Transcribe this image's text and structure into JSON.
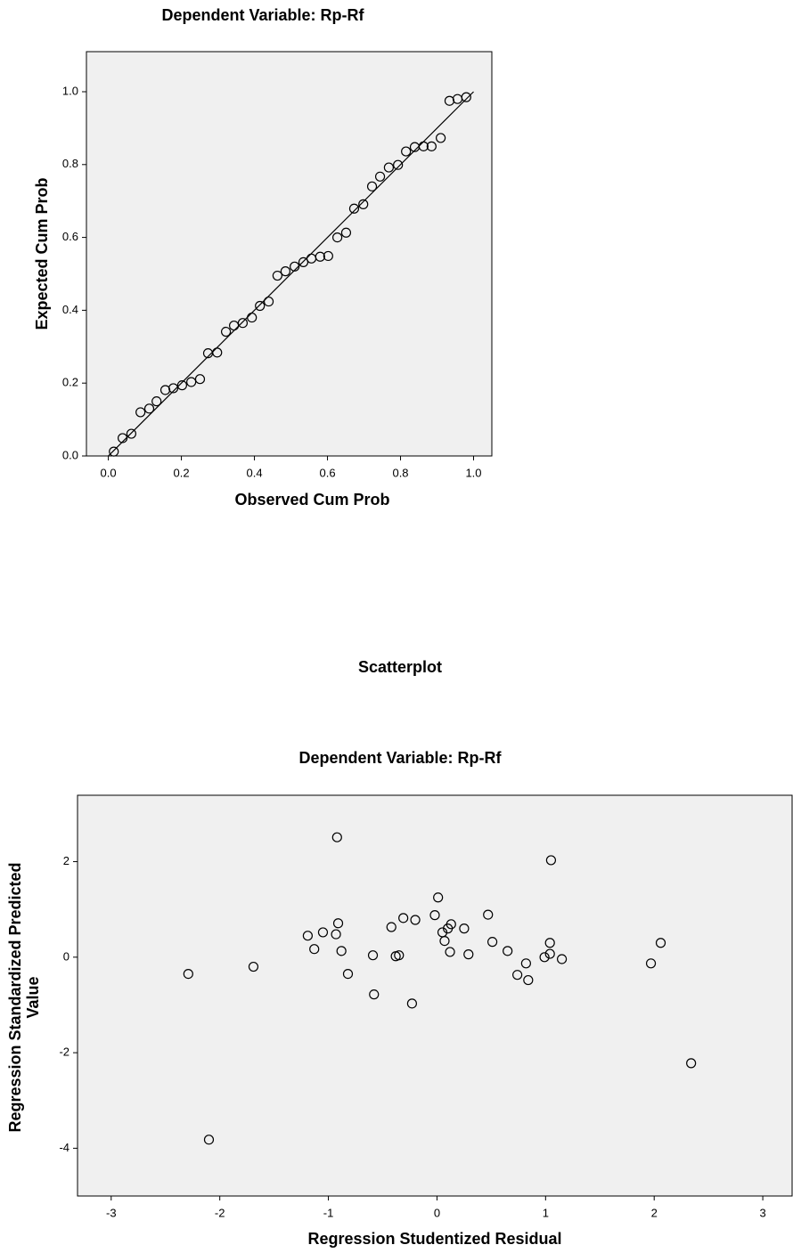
{
  "chart_data": [
    {
      "type": "scatter",
      "subtitle": "Dependent Variable: Rp-Rf",
      "xlabel": "Observed Cum Prob",
      "ylabel": [
        "Expected Cum Prob"
      ],
      "diagonal": true,
      "color": "#000000",
      "x": [
        0.015,
        0.039,
        0.063,
        0.088,
        0.112,
        0.132,
        0.156,
        0.178,
        0.202,
        0.227,
        0.251,
        0.273,
        0.298,
        0.322,
        0.344,
        0.368,
        0.393,
        0.415,
        0.439,
        0.463,
        0.485,
        0.51,
        0.534,
        0.556,
        0.58,
        0.602,
        0.627,
        0.651,
        0.673,
        0.698,
        0.722,
        0.744,
        0.768,
        0.793,
        0.815,
        0.839,
        0.863,
        0.885,
        0.91,
        0.934,
        0.956,
        0.98
      ],
      "values": [
        0.012,
        0.049,
        0.061,
        0.12,
        0.13,
        0.15,
        0.181,
        0.186,
        0.194,
        0.203,
        0.211,
        0.282,
        0.284,
        0.341,
        0.358,
        0.365,
        0.38,
        0.412,
        0.424,
        0.495,
        0.507,
        0.52,
        0.532,
        0.542,
        0.547,
        0.549,
        0.6,
        0.613,
        0.679,
        0.691,
        0.74,
        0.767,
        0.792,
        0.799,
        0.836,
        0.848,
        0.85,
        0.85,
        0.873,
        0.975,
        0.98,
        0.985
      ],
      "xlim": [
        -0.06,
        1.05
      ],
      "ylim": [
        0,
        1.11
      ],
      "xticks": [
        {
          "value": 0,
          "label": "0.0"
        },
        {
          "value": 0.2,
          "label": "0.2"
        },
        {
          "value": 0.4,
          "label": "0.4"
        },
        {
          "value": 0.6,
          "label": "0.6"
        },
        {
          "value": 0.8,
          "label": "0.8"
        },
        {
          "value": 1,
          "label": "1.0"
        }
      ],
      "yticks": [
        {
          "value": 0,
          "label": "0.0"
        },
        {
          "value": 0.2,
          "label": "0.2"
        },
        {
          "value": 0.4,
          "label": "0.4"
        },
        {
          "value": 0.6,
          "label": "0.6"
        },
        {
          "value": 0.8,
          "label": "0.8"
        },
        {
          "value": 1,
          "label": "1.0"
        }
      ]
    },
    {
      "type": "scatter",
      "title": "Scatterplot",
      "subtitle": "Dependent Variable: Rp-Rf",
      "xlabel": "Regression Studentized Residual",
      "ylabel": [
        "Regression Standardized Predicted",
        "Value"
      ],
      "diagonal": false,
      "color": "#000000",
      "x": [
        -0.92,
        0.01,
        1.05,
        -1.19,
        -1.05,
        -0.93,
        -0.91,
        -1.13,
        -0.88,
        -0.42,
        -0.31,
        -0.2,
        -0.02,
        0.05,
        0.1,
        0.13,
        0.07,
        0.12,
        0.25,
        0.29,
        0.47,
        0.51,
        0.65,
        0.74,
        0.82,
        0.84,
        0.99,
        1.04,
        1.04,
        1.15,
        -2.29,
        -1.69,
        -0.82,
        -0.59,
        -0.38,
        -0.35,
        -0.58,
        -0.23,
        1.97,
        2.06,
        2.34,
        -2.1
      ],
      "values": [
        2.51,
        1.25,
        2.03,
        0.45,
        0.52,
        0.48,
        0.71,
        0.17,
        0.13,
        0.63,
        0.82,
        0.78,
        0.88,
        0.52,
        0.6,
        0.69,
        0.34,
        0.11,
        0.6,
        0.06,
        0.89,
        0.32,
        0.13,
        -0.37,
        -0.13,
        -0.48,
        0.0,
        0.07,
        0.3,
        -0.04,
        -0.35,
        -0.2,
        -0.35,
        0.04,
        0.02,
        0.04,
        -0.78,
        -0.97,
        -0.13,
        0.3,
        -2.22,
        -3.82
      ],
      "xlim": [
        -3.31,
        3.27
      ],
      "ylim": [
        -5.0,
        3.39
      ],
      "xticks": [
        -3,
        -2,
        -1,
        0,
        1,
        2,
        3
      ],
      "yticks": [
        -4,
        -2,
        0,
        2
      ]
    }
  ]
}
